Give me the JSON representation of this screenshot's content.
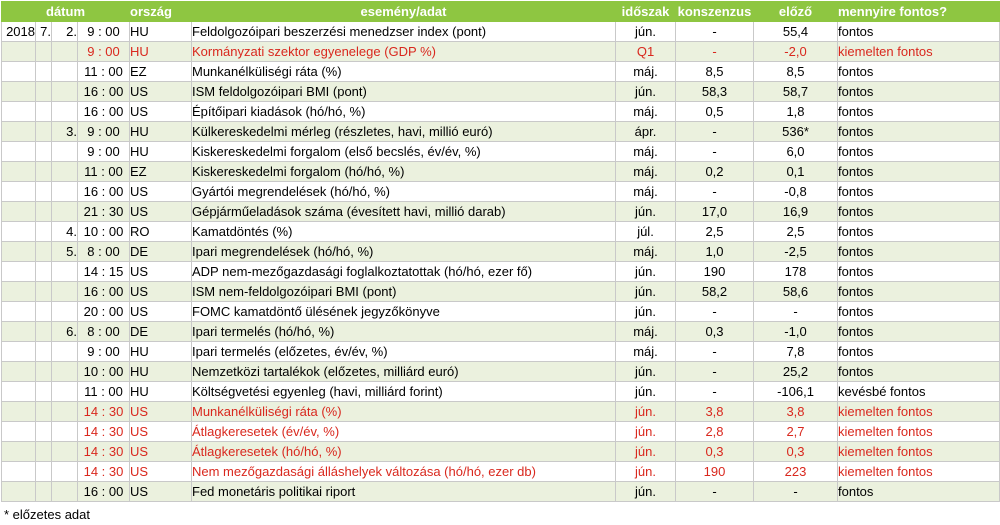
{
  "headers": {
    "date": "dátum",
    "country": "ország",
    "event": "esemény/adat",
    "period": "időszak",
    "consensus": "konszenzus",
    "previous": "előző",
    "importance": "mennyire fontos?"
  },
  "rows": [
    {
      "year": "2018",
      "month": "7.",
      "day": "2.",
      "time": "9 : 00",
      "country": "HU",
      "event": "Feldolgozóipari beszerzési menedzser index (pont)",
      "period": "jún.",
      "consensus": "-",
      "previous": "55,4",
      "importance": "fontos",
      "highlight": false
    },
    {
      "year": "",
      "month": "",
      "day": "",
      "time": "9 : 00",
      "country": "HU",
      "event": "Kormányzati szektor egyenelege (GDP %)",
      "period": "Q1",
      "consensus": "-",
      "previous": "-2,0",
      "importance": "kiemelten fontos",
      "highlight": true
    },
    {
      "year": "",
      "month": "",
      "day": "",
      "time": "11 : 00",
      "country": "EZ",
      "event": "Munkanélküliségi ráta (%)",
      "period": "máj.",
      "consensus": "8,5",
      "previous": "8,5",
      "importance": "fontos",
      "highlight": false
    },
    {
      "year": "",
      "month": "",
      "day": "",
      "time": "16 : 00",
      "country": "US",
      "event": "ISM feldolgozóipari BMI (pont)",
      "period": "jún.",
      "consensus": "58,3",
      "previous": "58,7",
      "importance": "fontos",
      "highlight": false
    },
    {
      "year": "",
      "month": "",
      "day": "",
      "time": "16 : 00",
      "country": "US",
      "event": "Építőipari kiadások (hó/hó, %)",
      "period": "máj.",
      "consensus": "0,5",
      "previous": "1,8",
      "importance": "fontos",
      "highlight": false
    },
    {
      "year": "",
      "month": "",
      "day": "3.",
      "time": "9 : 00",
      "country": "HU",
      "event": "Külkereskedelmi mérleg (részletes, havi, millió euró)",
      "period": "ápr.",
      "consensus": "-",
      "previous": "536*",
      "importance": "fontos",
      "highlight": false
    },
    {
      "year": "",
      "month": "",
      "day": "",
      "time": "9 : 00",
      "country": "HU",
      "event": "Kiskereskedelmi forgalom (első becslés, év/év, %)",
      "period": "máj.",
      "consensus": "-",
      "previous": "6,0",
      "importance": "fontos",
      "highlight": false
    },
    {
      "year": "",
      "month": "",
      "day": "",
      "time": "11 : 00",
      "country": "EZ",
      "event": "Kiskereskedelmi forgalom (hó/hó, %)",
      "period": "máj.",
      "consensus": "0,2",
      "previous": "0,1",
      "importance": "fontos",
      "highlight": false
    },
    {
      "year": "",
      "month": "",
      "day": "",
      "time": "16 : 00",
      "country": "US",
      "event": "Gyártói megrendelések (hó/hó, %)",
      "period": "máj.",
      "consensus": "-",
      "previous": "-0,8",
      "importance": "fontos",
      "highlight": false
    },
    {
      "year": "",
      "month": "",
      "day": "",
      "time": "21 : 30",
      "country": "US",
      "event": "Gépjárműeladások száma (évesített havi, millió darab)",
      "period": "jún.",
      "consensus": "17,0",
      "previous": "16,9",
      "importance": "fontos",
      "highlight": false
    },
    {
      "year": "",
      "month": "",
      "day": "4.",
      "time": "10 : 00",
      "country": "RO",
      "event": "Kamatdöntés (%)",
      "period": "júl.",
      "consensus": "2,5",
      "previous": "2,5",
      "importance": "fontos",
      "highlight": false
    },
    {
      "year": "",
      "month": "",
      "day": "5.",
      "time": "8 : 00",
      "country": "DE",
      "event": "Ipari megrendelések (hó/hó, %)",
      "period": "máj.",
      "consensus": "1,0",
      "previous": "-2,5",
      "importance": "fontos",
      "highlight": false
    },
    {
      "year": "",
      "month": "",
      "day": "",
      "time": "14 : 15",
      "country": "US",
      "event": "ADP nem-mezőgazdasági foglalkoztatottak (hó/hó, ezer fő)",
      "period": "jún.",
      "consensus": "190",
      "previous": "178",
      "importance": "fontos",
      "highlight": false
    },
    {
      "year": "",
      "month": "",
      "day": "",
      "time": "16 : 00",
      "country": "US",
      "event": "ISM nem-feldolgozóipari BMI (pont)",
      "period": "jún.",
      "consensus": "58,2",
      "previous": "58,6",
      "importance": "fontos",
      "highlight": false
    },
    {
      "year": "",
      "month": "",
      "day": "",
      "time": "20 : 00",
      "country": "US",
      "event": "FOMC kamatdöntő ülésének jegyzőkönyve",
      "period": "jún.",
      "consensus": "-",
      "previous": "-",
      "importance": "fontos",
      "highlight": false
    },
    {
      "year": "",
      "month": "",
      "day": "6.",
      "time": "8 : 00",
      "country": "DE",
      "event": "Ipari termelés (hó/hó, %)",
      "period": "máj.",
      "consensus": "0,3",
      "previous": "-1,0",
      "importance": "fontos",
      "highlight": false
    },
    {
      "year": "",
      "month": "",
      "day": "",
      "time": "9 : 00",
      "country": "HU",
      "event": "Ipari termelés (előzetes, év/év, %)",
      "period": "máj.",
      "consensus": "-",
      "previous": "7,8",
      "importance": "fontos",
      "highlight": false
    },
    {
      "year": "",
      "month": "",
      "day": "",
      "time": "10 : 00",
      "country": "HU",
      "event": "Nemzetközi tartalékok (előzetes, milliárd euró)",
      "period": "jún.",
      "consensus": "-",
      "previous": "25,2",
      "importance": "fontos",
      "highlight": false
    },
    {
      "year": "",
      "month": "",
      "day": "",
      "time": "11 : 00",
      "country": "HU",
      "event": "Költségvetési egyenleg (havi, milliárd forint)",
      "period": "jún.",
      "consensus": "-",
      "previous": "-106,1",
      "importance": "kevésbé fontos",
      "highlight": false
    },
    {
      "year": "",
      "month": "",
      "day": "",
      "time": "14 : 30",
      "country": "US",
      "event": "Munkanélküliségi ráta (%)",
      "period": "jún.",
      "consensus": "3,8",
      "previous": "3,8",
      "importance": "kiemelten fontos",
      "highlight": true
    },
    {
      "year": "",
      "month": "",
      "day": "",
      "time": "14 : 30",
      "country": "US",
      "event": "Átlagkeresetek (év/év, %)",
      "period": "jún.",
      "consensus": "2,8",
      "previous": "2,7",
      "importance": "kiemelten fontos",
      "highlight": true
    },
    {
      "year": "",
      "month": "",
      "day": "",
      "time": "14 : 30",
      "country": "US",
      "event": "Átlagkeresetek (hó/hó, %)",
      "period": "jún.",
      "consensus": "0,3",
      "previous": "0,3",
      "importance": "kiemelten fontos",
      "highlight": true
    },
    {
      "year": "",
      "month": "",
      "day": "",
      "time": "14 : 30",
      "country": "US",
      "event": "Nem mezőgazdasági álláshelyek változása (hó/hó, ezer db)",
      "period": "jún.",
      "consensus": "190",
      "previous": "223",
      "importance": "kiemelten fontos",
      "highlight": true
    },
    {
      "year": "",
      "month": "",
      "day": "",
      "time": "16 : 00",
      "country": "US",
      "event": "Fed monetáris politikai riport",
      "period": "jún.",
      "consensus": "-",
      "previous": "-",
      "importance": "fontos",
      "highlight": false
    }
  ],
  "footnote": "* előzetes adat",
  "colors": {
    "header_bg": "#8ec641",
    "header_text": "#ffffff",
    "alt_row_bg": "#ebf1de",
    "highlight_text": "#d9281e"
  }
}
